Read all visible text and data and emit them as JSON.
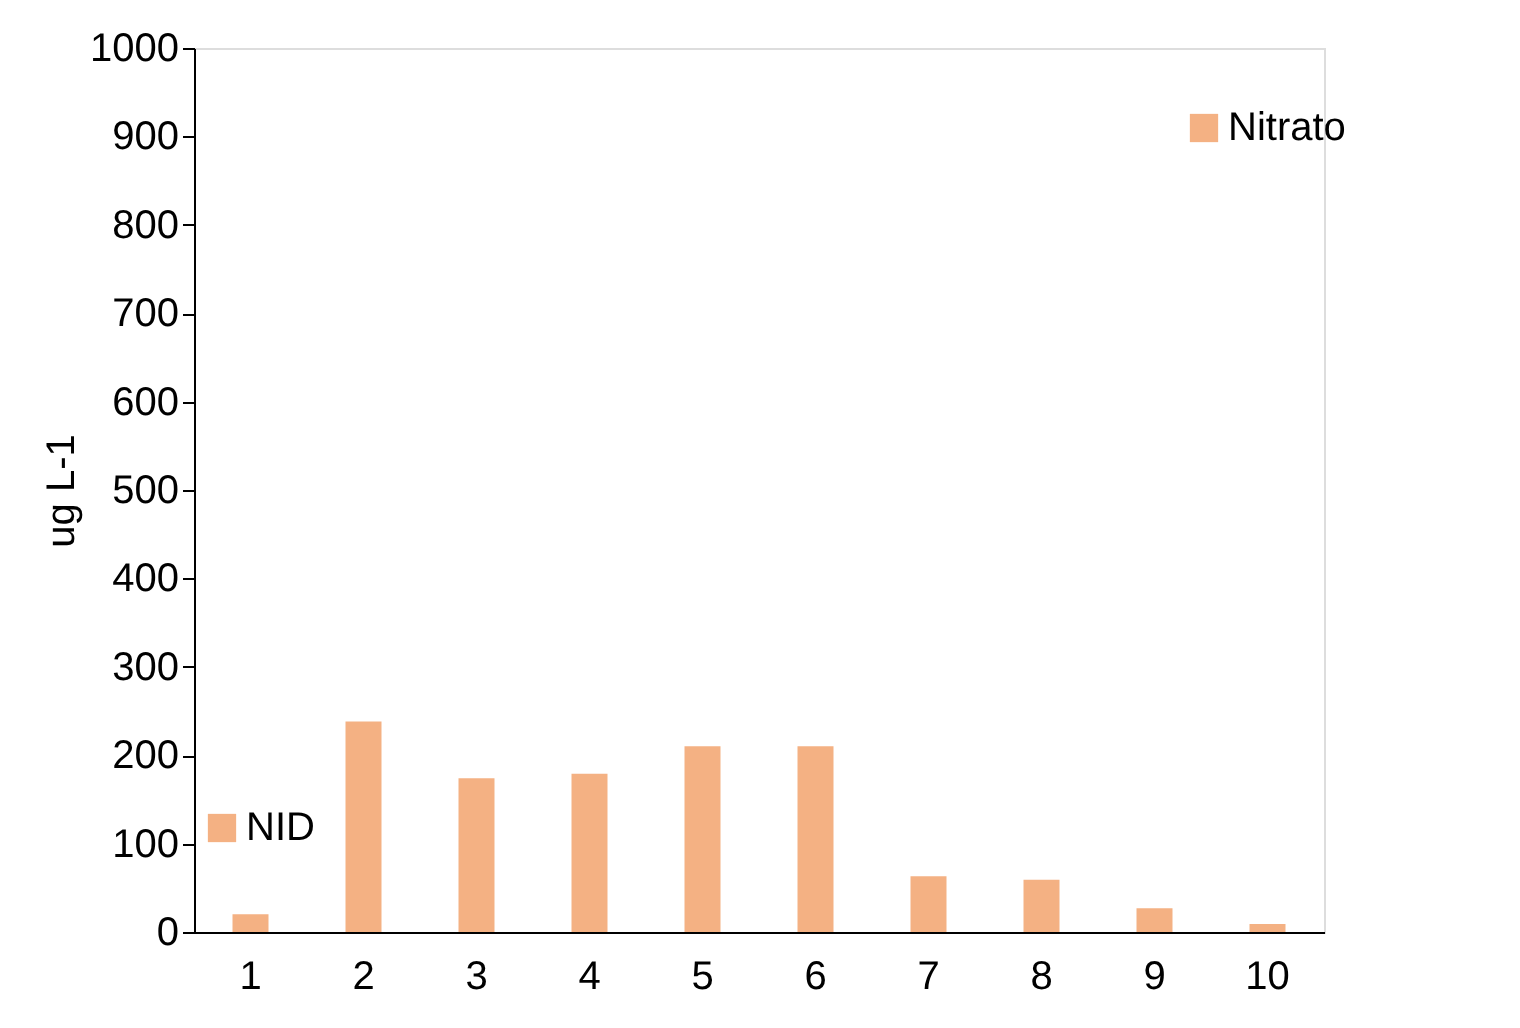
{
  "chart_data": {
    "type": "bar",
    "ylabel": "ug L-1",
    "categories": [
      "1",
      "2",
      "3",
      "4",
      "5",
      "6",
      "7",
      "8",
      "9",
      "10"
    ],
    "series": [
      {
        "name": "Nitrato",
        "color": "#f4b183",
        "values": [
          20,
          238,
          174,
          179,
          210,
          210,
          63,
          59,
          27,
          9
        ]
      },
      {
        "name": "NID",
        "color": "#f4b183",
        "values": [
          null,
          null,
          null,
          null,
          null,
          null,
          null,
          null,
          null,
          null
        ]
      }
    ],
    "ylim": [
      0,
      1000
    ],
    "yticks": [
      0,
      100,
      200,
      300,
      400,
      500,
      600,
      700,
      800,
      900,
      1000
    ],
    "grid": false,
    "legend": "top right"
  }
}
